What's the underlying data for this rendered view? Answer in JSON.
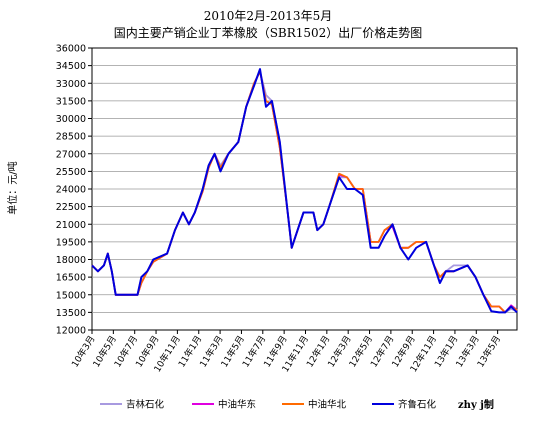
{
  "chart_data": {
    "type": "line",
    "title": "2010年2月-2013年5月",
    "subtitle": "国内主要产销企业丁苯橡胶（SBR1502）出厂价格走势图",
    "ylabel": "单位：元/吨",
    "xlabel": "",
    "ylim": [
      12000,
      36000
    ],
    "yticks": [
      12000,
      13500,
      15000,
      16500,
      18000,
      19500,
      21000,
      22500,
      24000,
      25500,
      27000,
      28500,
      30000,
      31500,
      33000,
      34500,
      36000
    ],
    "ytick_labels": [
      "12000",
      "13500",
      "15000",
      "16500",
      "18000",
      "19500",
      "21000",
      "22500",
      "24000",
      "25500",
      "27000",
      "28500",
      "30000",
      "31500",
      "33000",
      "34500",
      "36000"
    ],
    "xtick_labels": [
      "10年3月",
      "10年5月",
      "10年7月",
      "10年9月",
      "10年11月",
      "11年1月",
      "11年3月",
      "11年5月",
      "11年7月",
      "11年9月",
      "11年11月",
      "12年1月",
      "12年3月",
      "12年5月",
      "12年7月",
      "12年9月",
      "12年11月",
      "13年1月",
      "13年3月",
      "13年5月"
    ],
    "xtick_pos": [
      0,
      1.08,
      2.16,
      3.24,
      4.32,
      5.4,
      6.48,
      7.56,
      8.64,
      9.72,
      10.8,
      11.88,
      12.96,
      14.04,
      15.12,
      16.2,
      17.28,
      18.36,
      19.44,
      20.52
    ],
    "x_max": 21.5,
    "grid": true,
    "legend_position": "bottom",
    "source_note": "zhy j制",
    "series": [
      {
        "name": "吉林石化",
        "color": "#a89ae0",
        "points": [
          [
            0,
            17500
          ],
          [
            0.3,
            17000
          ],
          [
            0.6,
            17500
          ],
          [
            0.8,
            18500
          ],
          [
            1.0,
            17000
          ],
          [
            1.2,
            15000
          ],
          [
            1.4,
            15000
          ],
          [
            2.3,
            15000
          ],
          [
            2.5,
            16500
          ],
          [
            2.8,
            17000
          ],
          [
            3.1,
            18000
          ],
          [
            3.8,
            18500
          ],
          [
            4.2,
            20500
          ],
          [
            4.6,
            22000
          ],
          [
            4.9,
            21000
          ],
          [
            5.2,
            22000
          ],
          [
            5.6,
            24000
          ],
          [
            5.9,
            26000
          ],
          [
            6.2,
            27000
          ],
          [
            6.5,
            26000
          ],
          [
            6.9,
            27000
          ],
          [
            7.4,
            28000
          ],
          [
            7.8,
            31000
          ],
          [
            8.2,
            33000
          ],
          [
            8.5,
            34000
          ],
          [
            8.8,
            32000
          ],
          [
            9.1,
            31500
          ],
          [
            9.5,
            28000
          ],
          [
            9.9,
            22000
          ],
          [
            10.1,
            19000
          ],
          [
            10.4,
            20500
          ],
          [
            10.7,
            22000
          ],
          [
            11.2,
            22000
          ],
          [
            11.4,
            20500
          ],
          [
            11.7,
            21000
          ],
          [
            12.0,
            22500
          ],
          [
            12.5,
            25000
          ],
          [
            12.9,
            25000
          ],
          [
            13.3,
            24000
          ],
          [
            13.7,
            24000
          ],
          [
            14.1,
            19500
          ],
          [
            14.5,
            19500
          ],
          [
            14.8,
            20500
          ],
          [
            15.2,
            21000
          ],
          [
            15.6,
            19000
          ],
          [
            16.0,
            19000
          ],
          [
            16.4,
            19500
          ],
          [
            16.9,
            19500
          ],
          [
            17.3,
            17500
          ],
          [
            17.6,
            16500
          ],
          [
            17.9,
            17000
          ],
          [
            18.3,
            17500
          ],
          [
            19.0,
            17500
          ],
          [
            19.4,
            16500
          ],
          [
            19.8,
            15000
          ],
          [
            20.2,
            14000
          ],
          [
            20.6,
            14000
          ],
          [
            20.9,
            13500
          ],
          [
            21.2,
            13800
          ],
          [
            21.5,
            13600
          ]
        ]
      },
      {
        "name": "中油华东",
        "color": "#e000e0",
        "points": [
          [
            0,
            17500
          ],
          [
            0.3,
            17000
          ],
          [
            0.6,
            17500
          ],
          [
            0.8,
            18500
          ],
          [
            1.0,
            17000
          ],
          [
            1.2,
            15000
          ],
          [
            1.4,
            15000
          ],
          [
            2.3,
            15000
          ],
          [
            2.5,
            16000
          ],
          [
            2.8,
            17000
          ],
          [
            3.1,
            17800
          ],
          [
            3.8,
            18500
          ],
          [
            4.2,
            20500
          ],
          [
            4.6,
            22000
          ],
          [
            4.9,
            21000
          ],
          [
            5.2,
            22000
          ],
          [
            5.6,
            23800
          ],
          [
            5.9,
            25800
          ],
          [
            6.2,
            27000
          ],
          [
            6.5,
            25800
          ],
          [
            6.9,
            27000
          ],
          [
            7.4,
            28000
          ],
          [
            7.8,
            31000
          ],
          [
            8.2,
            33000
          ],
          [
            8.5,
            34000
          ],
          [
            8.8,
            31500
          ],
          [
            9.1,
            31200
          ],
          [
            9.5,
            27500
          ],
          [
            9.9,
            22000
          ],
          [
            10.1,
            19000
          ],
          [
            10.4,
            20500
          ],
          [
            10.7,
            22000
          ],
          [
            11.2,
            22000
          ],
          [
            11.4,
            20500
          ],
          [
            11.7,
            21000
          ],
          [
            12.0,
            22500
          ],
          [
            12.5,
            25200
          ],
          [
            12.9,
            25000
          ],
          [
            13.3,
            24000
          ],
          [
            13.7,
            24000
          ],
          [
            14.1,
            19500
          ],
          [
            14.5,
            19500
          ],
          [
            14.8,
            20500
          ],
          [
            15.2,
            20800
          ],
          [
            15.6,
            19000
          ],
          [
            16.0,
            19000
          ],
          [
            16.4,
            19500
          ],
          [
            16.9,
            19500
          ],
          [
            17.3,
            17500
          ],
          [
            17.6,
            16500
          ],
          [
            17.9,
            17000
          ],
          [
            18.3,
            17000
          ],
          [
            19.0,
            17500
          ],
          [
            19.4,
            16500
          ],
          [
            19.8,
            15000
          ],
          [
            20.2,
            14000
          ],
          [
            20.6,
            14000
          ],
          [
            20.9,
            13500
          ],
          [
            21.2,
            14100
          ],
          [
            21.5,
            13700
          ]
        ]
      },
      {
        "name": "中油华北",
        "color": "#ff6a00",
        "points": [
          [
            0,
            17500
          ],
          [
            0.3,
            17000
          ],
          [
            0.6,
            17500
          ],
          [
            0.8,
            18500
          ],
          [
            1.0,
            17000
          ],
          [
            1.2,
            15000
          ],
          [
            1.4,
            15000
          ],
          [
            2.3,
            15000
          ],
          [
            2.5,
            16000
          ],
          [
            2.8,
            17000
          ],
          [
            3.1,
            17800
          ],
          [
            3.8,
            18500
          ],
          [
            4.2,
            20500
          ],
          [
            4.6,
            22000
          ],
          [
            4.9,
            21000
          ],
          [
            5.2,
            22000
          ],
          [
            5.6,
            23800
          ],
          [
            5.9,
            25800
          ],
          [
            6.2,
            27000
          ],
          [
            6.5,
            25800
          ],
          [
            6.9,
            27000
          ],
          [
            7.4,
            28000
          ],
          [
            7.8,
            31000
          ],
          [
            8.2,
            33000
          ],
          [
            8.5,
            34000
          ],
          [
            8.8,
            31500
          ],
          [
            9.1,
            31200
          ],
          [
            9.5,
            27500
          ],
          [
            9.9,
            22000
          ],
          [
            10.1,
            19000
          ],
          [
            10.4,
            20500
          ],
          [
            10.7,
            22000
          ],
          [
            11.2,
            22000
          ],
          [
            11.4,
            20500
          ],
          [
            11.7,
            21000
          ],
          [
            12.0,
            22500
          ],
          [
            12.5,
            25300
          ],
          [
            12.9,
            25000
          ],
          [
            13.3,
            24000
          ],
          [
            13.7,
            24000
          ],
          [
            14.1,
            19500
          ],
          [
            14.5,
            19500
          ],
          [
            14.8,
            20500
          ],
          [
            15.2,
            21000
          ],
          [
            15.6,
            19000
          ],
          [
            16.0,
            19000
          ],
          [
            16.4,
            19500
          ],
          [
            16.9,
            19500
          ],
          [
            17.3,
            17500
          ],
          [
            17.6,
            16500
          ],
          [
            17.9,
            17000
          ],
          [
            18.3,
            17000
          ],
          [
            19.0,
            17500
          ],
          [
            19.4,
            16500
          ],
          [
            19.8,
            15000
          ],
          [
            20.2,
            14000
          ],
          [
            20.6,
            14000
          ],
          [
            20.9,
            13500
          ],
          [
            21.2,
            14000
          ],
          [
            21.5,
            13700
          ]
        ]
      },
      {
        "name": "齐鲁石化",
        "color": "#0000dd",
        "points": [
          [
            0,
            17500
          ],
          [
            0.3,
            17000
          ],
          [
            0.6,
            17500
          ],
          [
            0.8,
            18500
          ],
          [
            1.0,
            17000
          ],
          [
            1.2,
            15000
          ],
          [
            1.4,
            15000
          ],
          [
            2.3,
            15000
          ],
          [
            2.5,
            16500
          ],
          [
            2.8,
            17000
          ],
          [
            3.1,
            18000
          ],
          [
            3.8,
            18500
          ],
          [
            4.2,
            20500
          ],
          [
            4.6,
            22000
          ],
          [
            4.9,
            21000
          ],
          [
            5.2,
            22000
          ],
          [
            5.6,
            24000
          ],
          [
            5.9,
            26000
          ],
          [
            6.2,
            27000
          ],
          [
            6.5,
            25500
          ],
          [
            6.9,
            27000
          ],
          [
            7.4,
            28000
          ],
          [
            7.8,
            31000
          ],
          [
            8.2,
            32800
          ],
          [
            8.5,
            34200
          ],
          [
            8.8,
            31000
          ],
          [
            9.1,
            31500
          ],
          [
            9.5,
            28000
          ],
          [
            9.9,
            22000
          ],
          [
            10.1,
            19000
          ],
          [
            10.4,
            20500
          ],
          [
            10.7,
            22000
          ],
          [
            11.2,
            22000
          ],
          [
            11.4,
            20500
          ],
          [
            11.7,
            21000
          ],
          [
            12.0,
            22500
          ],
          [
            12.5,
            25000
          ],
          [
            12.9,
            24000
          ],
          [
            13.3,
            24000
          ],
          [
            13.7,
            23500
          ],
          [
            14.1,
            19000
          ],
          [
            14.5,
            19000
          ],
          [
            14.8,
            20000
          ],
          [
            15.2,
            21000
          ],
          [
            15.6,
            19000
          ],
          [
            16.0,
            18000
          ],
          [
            16.4,
            19000
          ],
          [
            16.9,
            19500
          ],
          [
            17.3,
            17500
          ],
          [
            17.6,
            16000
          ],
          [
            17.9,
            17000
          ],
          [
            18.3,
            17000
          ],
          [
            19.0,
            17500
          ],
          [
            19.4,
            16500
          ],
          [
            19.8,
            15000
          ],
          [
            20.2,
            13600
          ],
          [
            20.6,
            13500
          ],
          [
            20.9,
            13500
          ],
          [
            21.2,
            14000
          ],
          [
            21.5,
            13500
          ]
        ]
      }
    ]
  }
}
